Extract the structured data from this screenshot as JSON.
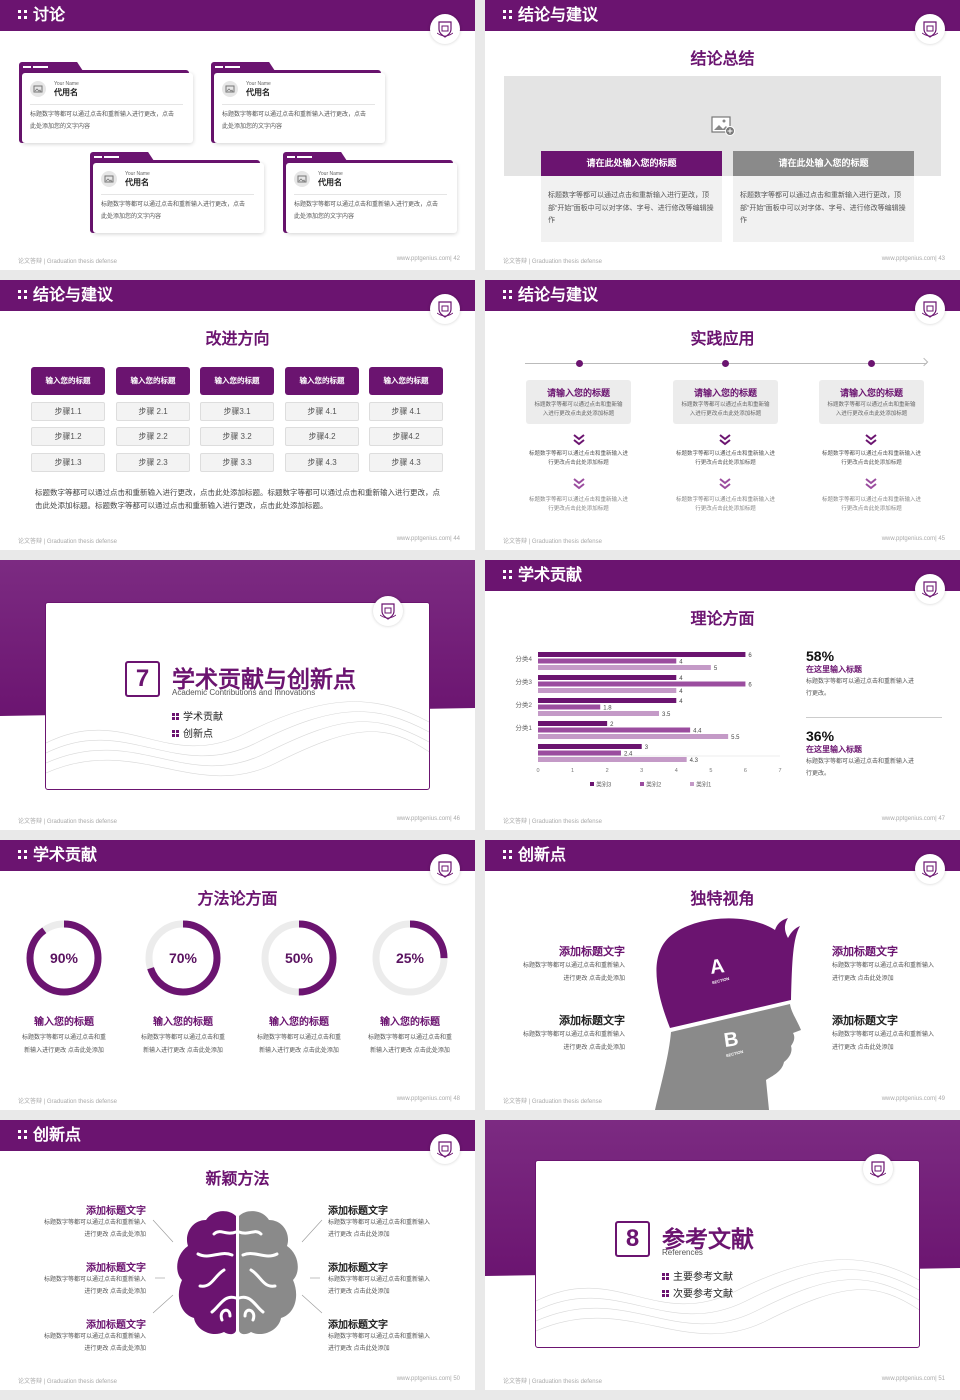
{
  "colors": {
    "primary": "#6b1470",
    "mid": "#9b4d9f",
    "light": "#c49ac7",
    "gray": "#8a8a8a",
    "panel": "#f1f1f1"
  },
  "footer": {
    "left": "论文答辩 | Graduation thesis defense",
    "site": "www.pptgenius.com"
  },
  "s42": {
    "header": "讨论",
    "page": "42",
    "cards": [
      {
        "en": "Your Name",
        "name": "代用名",
        "text": "标题数字等都可以通过点击和重新输入进行更改，点击此处添加您的文字内容"
      },
      {
        "en": "Your Name",
        "name": "代用名",
        "text": "标题数字等都可以通过点击和重新输入进行更改，点击此处添加您的文字内容"
      },
      {
        "en": "Your Name",
        "name": "代用名",
        "text": "标题数字等都可以通过点击和重新输入进行更改，点击此处添加您的文字内容"
      },
      {
        "en": "Your Name",
        "name": "代用名",
        "text": "标题数字等都可以通过点击和重新输入进行更改，点击此处添加您的文字内容"
      }
    ]
  },
  "s43": {
    "header": "结论与建议",
    "page": "43",
    "title": "结论总结",
    "image_icon": "image-add-icon",
    "boxes": [
      {
        "title": "请在此处输入您的标题",
        "text": "标题数字等都可以通过点击和重新输入进行更改，顶部“开始”面板中可以对字体、字号、进行修改等编辑操作"
      },
      {
        "title": "请在此处输入您的标题",
        "text": "标题数字等都可以通过点击和重新输入进行更改，顶部“开始”面板中可以对字体、字号、进行修改等编辑操作"
      }
    ]
  },
  "s44": {
    "header": "结论与建议",
    "page": "44",
    "title": "改进方向",
    "columns": [
      {
        "title": "输入您的标题",
        "steps": [
          "步骤1.1",
          "步骤1.2",
          "步骤1.3"
        ]
      },
      {
        "title": "输入您的标题",
        "steps": [
          "步骤 2.1",
          "步骤 2.2",
          "步骤 2.3"
        ]
      },
      {
        "title": "输入您的标题",
        "steps": [
          "步骤3.1",
          "步骤 3.2",
          "步骤 3.3"
        ]
      },
      {
        "title": "输入您的标题",
        "steps": [
          "步骤 4.1",
          "步骤4.2",
          "步骤 4.3"
        ]
      },
      {
        "title": "输入您的标题",
        "steps": [
          "步骤 4.1",
          "步骤4.2",
          "步骤 4.3"
        ]
      }
    ],
    "paragraph": "标题数字等都可以通过点击和重新输入进行更改，点击此处添加标题。标题数字等都可以通过点击和重新输入进行更改，点击此处添加标题。标题数字等都可以通过点击和重新输入进行更改，点击此处添加标题。"
  },
  "s45": {
    "header": "结论与建议",
    "page": "45",
    "title": "实践应用",
    "items": [
      {
        "title": "请输入您的标题",
        "text": "标题数字等都可以通过点击和重新输入进行更改点击此处添加标题",
        "text2": "标题数字等都可以通过点击和重新输入进行更改点击此处添加标题",
        "text3": "标题数字等都可以通过点击和重新输入进行更改点击此处添加标题"
      },
      {
        "title": "请输入您的标题",
        "text": "标题数字等都可以通过点击和重新输入进行更改点击此处添加标题",
        "text2": "标题数字等都可以通过点击和重新输入进行更改点击此处添加标题",
        "text3": "标题数字等都可以通过点击和重新输入进行更改点击此处添加标题"
      },
      {
        "title": "请输入您的标题",
        "text": "标题数字等都可以通过点击和重新输入进行更改点击此处添加标题",
        "text2": "标题数字等都可以通过点击和重新输入进行更改点击此处添加标题",
        "text3": "标题数字等都可以通过点击和重新输入进行更改点击此处添加标题"
      }
    ]
  },
  "s46": {
    "page": "46",
    "number": "7",
    "title": "学术贡献与创新点",
    "subtitle": "Academic Contributions and Innovations",
    "bullets": [
      "学术贡献",
      "创新点"
    ]
  },
  "s47": {
    "header": "学术贡献",
    "page": "47",
    "title": "理论方面",
    "stats": [
      {
        "value": "58%",
        "title": "在这里输入标题",
        "text": "标题数字等都可以通过点击和重新输入进行更改。"
      },
      {
        "value": "36%",
        "title": "在这里输入标题",
        "text": "标题数字等都可以通过点击和重新输入进行更改。"
      }
    ]
  },
  "chart_data": {
    "type": "bar",
    "orientation": "horizontal",
    "categories": [
      "",
      "分类1",
      "分类2",
      "分类3",
      "分类4"
    ],
    "series": [
      {
        "name": "类别3",
        "values": [
          3,
          2,
          4,
          4,
          6
        ]
      },
      {
        "name": "类别2",
        "values": [
          2.4,
          4.4,
          1.8,
          6,
          4
        ]
      },
      {
        "name": "类别1",
        "values": [
          4.3,
          5.5,
          3.5,
          4,
          5
        ]
      }
    ],
    "xlim": [
      0,
      7
    ],
    "xticks": [
      "0",
      "1",
      "2",
      "3",
      "4",
      "5",
      "6",
      "7"
    ],
    "grid": false,
    "legend": "bottom"
  },
  "s48": {
    "header": "学术贡献",
    "page": "48",
    "title": "方法论方面",
    "rings": [
      {
        "percent": 90,
        "label": "90%",
        "title": "输入您的标题",
        "text": "标题数字等都可以通过点击和重新输入进行更改 点击此处添加"
      },
      {
        "percent": 70,
        "label": "70%",
        "title": "输入您的标题",
        "text": "标题数字等都可以通过点击和重新输入进行更改 点击此处添加"
      },
      {
        "percent": 50,
        "label": "50%",
        "title": "输入您的标题",
        "text": "标题数字等都可以通过点击和重新输入进行更改 点击此处添加"
      },
      {
        "percent": 25,
        "label": "25%",
        "title": "输入您的标题",
        "text": "标题数字等都可以通过点击和重新输入进行更改 点击此处添加"
      }
    ]
  },
  "s49": {
    "header": "创新点",
    "page": "49",
    "title": "独特视角",
    "head": {
      "a": "A",
      "b": "B",
      "section": "SECTION"
    },
    "blocks": [
      {
        "title": "添加标题文字",
        "text": "标题数字等都可以通过点击和重新输入进行更改 点击此处添加"
      },
      {
        "title": "添加标题文字",
        "text": "标题数字等都可以通过点击和重新输入进行更改 点击此处添加"
      },
      {
        "title": "添加标题文字",
        "text": "标题数字等都可以通过点击和重新输入进行更改 点击此处添加"
      },
      {
        "title": "添加标题文字",
        "text": "标题数字等都可以通过点击和重新输入进行更改 点击此处添加"
      }
    ]
  },
  "s50": {
    "header": "创新点",
    "page": "50",
    "title": "新颖方法",
    "blocks": [
      {
        "title": "添加标题文字",
        "text": "标题数字等都可以通过点击和重新输入进行更改 点击此处添加"
      },
      {
        "title": "添加标题文字",
        "text": "标题数字等都可以通过点击和重新输入进行更改 点击此处添加"
      },
      {
        "title": "添加标题文字",
        "text": "标题数字等都可以通过点击和重新输入进行更改 点击此处添加"
      },
      {
        "title": "添加标题文字",
        "text": "标题数字等都可以通过点击和重新输入进行更改 点击此处添加"
      },
      {
        "title": "添加标题文字",
        "text": "标题数字等都可以通过点击和重新输入进行更改 点击此处添加"
      },
      {
        "title": "添加标题文字",
        "text": "标题数字等都可以通过点击和重新输入进行更改 点击此处添加"
      }
    ]
  },
  "s51": {
    "page": "51",
    "number": "8",
    "title": "参考文献",
    "subtitle": "References",
    "bullets": [
      "主要参考文献",
      "次要参考文献"
    ]
  }
}
